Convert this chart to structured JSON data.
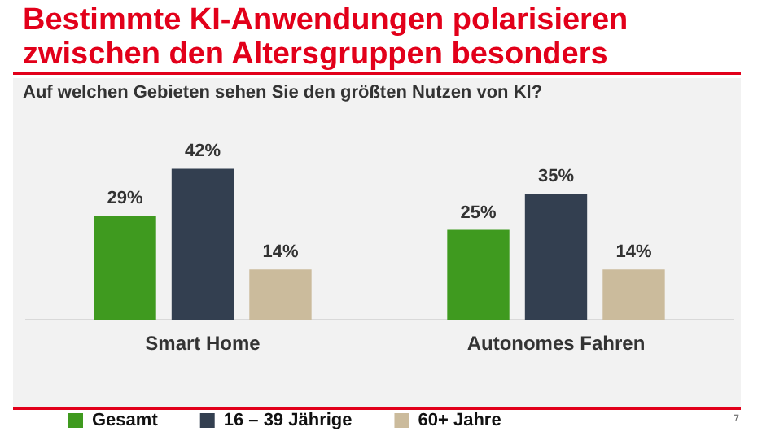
{
  "chart_data": {
    "type": "bar",
    "title": "Bestimmte KI-Anwendungen polarisieren zwischen den Altersgruppen besonders",
    "subtitle": "Auf welchen Gebieten sehen Sie den größten Nutzen von KI?",
    "categories": [
      "Smart Home",
      "Autonomes Fahren"
    ],
    "series": [
      {
        "name": "Gesamt",
        "color": "#3f9a1f",
        "values": [
          29,
          25
        ],
        "value_labels": [
          "29%",
          "25%"
        ]
      },
      {
        "name": "16 – 39 Jährige",
        "color": "#333f50",
        "values": [
          42,
          35
        ],
        "value_labels": [
          "42%",
          "35%"
        ]
      },
      {
        "name": "60+ Jahre",
        "color": "#cbbb9c",
        "values": [
          14,
          14
        ],
        "value_labels": [
          "14%",
          "14%"
        ]
      }
    ],
    "tick_labels": "x",
    "grid": false,
    "legend": "bottom left",
    "annotations": [
      "7"
    ]
  }
}
